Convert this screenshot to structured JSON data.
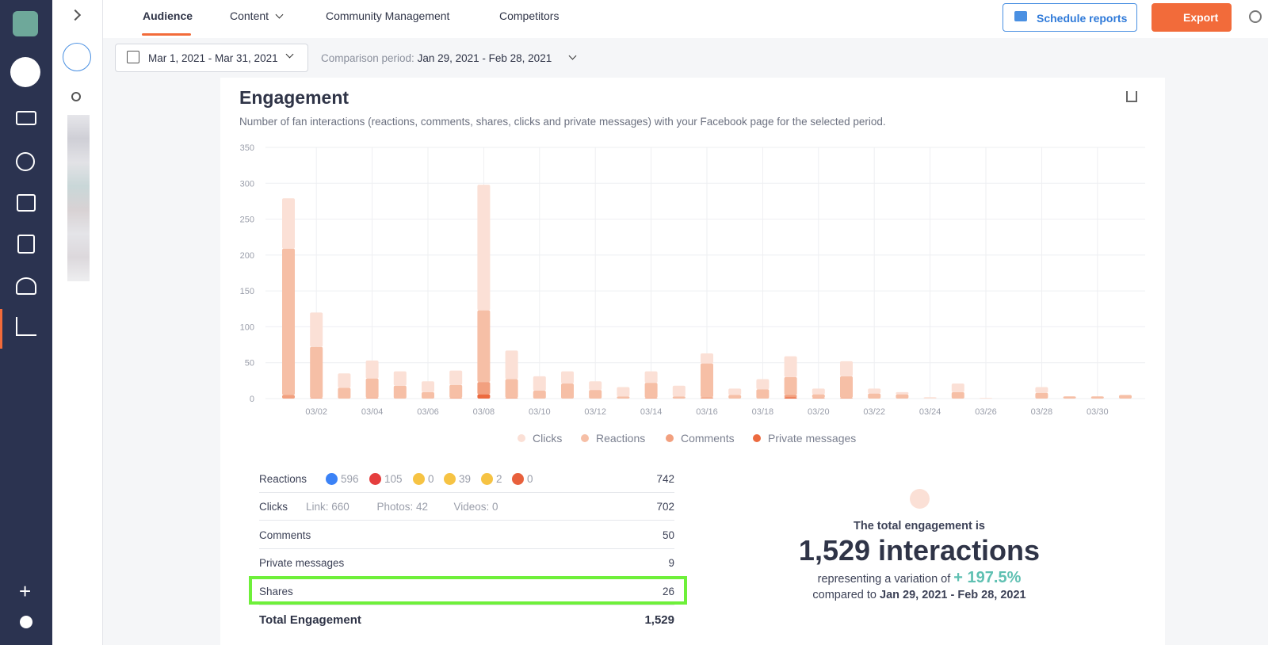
{
  "nav": {
    "tabs": [
      "Audience",
      "Content",
      "Community Management",
      "Competitors"
    ],
    "schedule": "Schedule reports",
    "export": "Export"
  },
  "filters": {
    "date_range": "Mar 1, 2021 - Mar 31, 2021",
    "comparison_label": "Comparison period:",
    "comparison_range": "Jan 29, 2021 - Feb 28, 2021"
  },
  "chart_data": {
    "type": "stacked-bar",
    "title": "Engagement",
    "subtitle": "Number of fan interactions (reactions, comments, shares, clicks and private messages) with your Facebook page for the selected period.",
    "categories": [
      null,
      "03/02",
      null,
      "03/04",
      null,
      "03/06",
      null,
      "03/08",
      null,
      "03/10",
      null,
      "03/12",
      null,
      "03/14",
      null,
      "03/16",
      null,
      "03/18",
      null,
      "03/20",
      null,
      "03/22",
      null,
      "03/24",
      null,
      "03/26",
      null,
      "03/28",
      null,
      "03/30",
      null
    ],
    "series": [
      {
        "name": "Private messages",
        "color": "#ec6a3f",
        "values": [
          0,
          0,
          0,
          0,
          0,
          0,
          0,
          6,
          0,
          0,
          0,
          0,
          0,
          0,
          0,
          0,
          0,
          0,
          2,
          0,
          0,
          0,
          0,
          0,
          0,
          0,
          0,
          0,
          0,
          0,
          0
        ]
      },
      {
        "name": "Comments",
        "color": "#f2a07f",
        "values": [
          5,
          1,
          0,
          1,
          0,
          0,
          1,
          17,
          1,
          0,
          0,
          0,
          0,
          1,
          0,
          2,
          0,
          0,
          3,
          1,
          1,
          0,
          0,
          0,
          0,
          0,
          0,
          0,
          0,
          0,
          0
        ]
      },
      {
        "name": "Reactions",
        "color": "#f6bfa6",
        "values": [
          204,
          71,
          15,
          27,
          18,
          9,
          18,
          100,
          26,
          11,
          21,
          12,
          3,
          21,
          3,
          47,
          5,
          13,
          25,
          5,
          30,
          7,
          6,
          0,
          9,
          0,
          0,
          8,
          3,
          3,
          5
        ]
      },
      {
        "name": "Clicks",
        "color": "#fbe0d6",
        "values": [
          70,
          48,
          20,
          25,
          20,
          15,
          20,
          175,
          40,
          20,
          17,
          12,
          13,
          16,
          15,
          14,
          9,
          14,
          29,
          8,
          21,
          7,
          3,
          2,
          12,
          1,
          0,
          8,
          0,
          0,
          0
        ]
      }
    ],
    "ylim": [
      0,
      350
    ],
    "yticks": [
      0,
      50,
      100,
      150,
      200,
      250,
      300,
      350
    ],
    "grid": true
  },
  "table": {
    "rows": [
      {
        "label": "Reactions",
        "details": [
          "596",
          "105",
          "0",
          "39",
          "2",
          "0"
        ],
        "value": "742"
      },
      {
        "label": "Clicks",
        "details": [
          "Link: 660",
          "Photos: 42",
          "Videos: 0"
        ],
        "value": "702"
      },
      {
        "label": "Comments",
        "details": [],
        "value": "50"
      },
      {
        "label": "Private messages",
        "details": [],
        "value": "9"
      },
      {
        "label": "Shares",
        "details": [],
        "value": "26"
      },
      {
        "label": "Total Engagement",
        "details": [],
        "value": "1,529"
      }
    ]
  },
  "summary": {
    "intro": "The total engagement is",
    "total": "1,529 interactions",
    "variation_text": "representing a variation of",
    "variation": "+ 197.5%",
    "compared": "compared to",
    "compared_range": "Jan 29, 2021 - Feb 28, 2021"
  }
}
